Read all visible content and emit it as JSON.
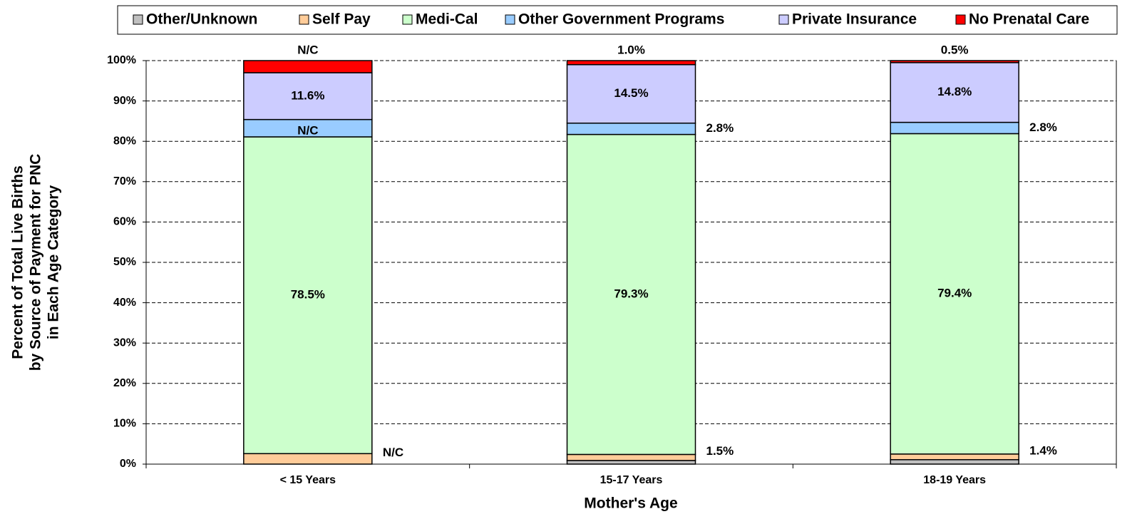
{
  "chart_data": {
    "type": "stacked_bar",
    "xlabel": "Mother's Age",
    "ylabel": [
      "Percent of Total Live Births",
      "by Source of Payment for PNC",
      "in Each Age Category"
    ],
    "categories": [
      "< 15 Years",
      "15-17 Years",
      "18-19 Years"
    ],
    "series": [
      {
        "name": "Other/Unknown",
        "color": "#c0c0c0",
        "values": [
          0,
          0.9,
          1.1
        ]
      },
      {
        "name": "Self Pay",
        "color": "#ffcc99",
        "values": [
          2.6,
          1.5,
          1.4
        ],
        "value_labels": [
          "N/C",
          "1.5%",
          "1.4%"
        ]
      },
      {
        "name": "Medi-Cal",
        "color": "#ccffcc",
        "values": [
          78.5,
          79.3,
          79.4
        ],
        "value_labels": [
          "78.5%",
          "79.3%",
          "79.4%"
        ]
      },
      {
        "name": "Other Government Programs",
        "color": "#99ccff",
        "values": [
          4.3,
          2.8,
          2.8
        ],
        "value_labels": [
          "N/C",
          "2.8%",
          "2.8%"
        ]
      },
      {
        "name": "Private Insurance",
        "color": "#ccccff",
        "values": [
          11.6,
          14.5,
          14.8
        ],
        "value_labels": [
          "11.6%",
          "14.5%",
          "14.8%"
        ]
      },
      {
        "name": "No Prenatal Care",
        "color": "#ff0000",
        "values": [
          3.0,
          1.0,
          0.5
        ],
        "value_labels": [
          "N/C",
          "1.0%",
          "0.5%"
        ]
      }
    ],
    "ylim": [
      0,
      100
    ],
    "yticks": [
      {
        "value": 0,
        "label": "0%"
      },
      {
        "value": 10,
        "label": "10%"
      },
      {
        "value": 20,
        "label": "20%"
      },
      {
        "value": 30,
        "label": "30%"
      },
      {
        "value": 40,
        "label": "40%"
      },
      {
        "value": 50,
        "label": "50%"
      },
      {
        "value": 60,
        "label": "60%"
      },
      {
        "value": 70,
        "label": "70%"
      },
      {
        "value": 80,
        "label": "80%"
      },
      {
        "value": 90,
        "label": "90%"
      },
      {
        "value": 100,
        "label": "100%"
      }
    ],
    "grid": true,
    "legend": "top"
  }
}
